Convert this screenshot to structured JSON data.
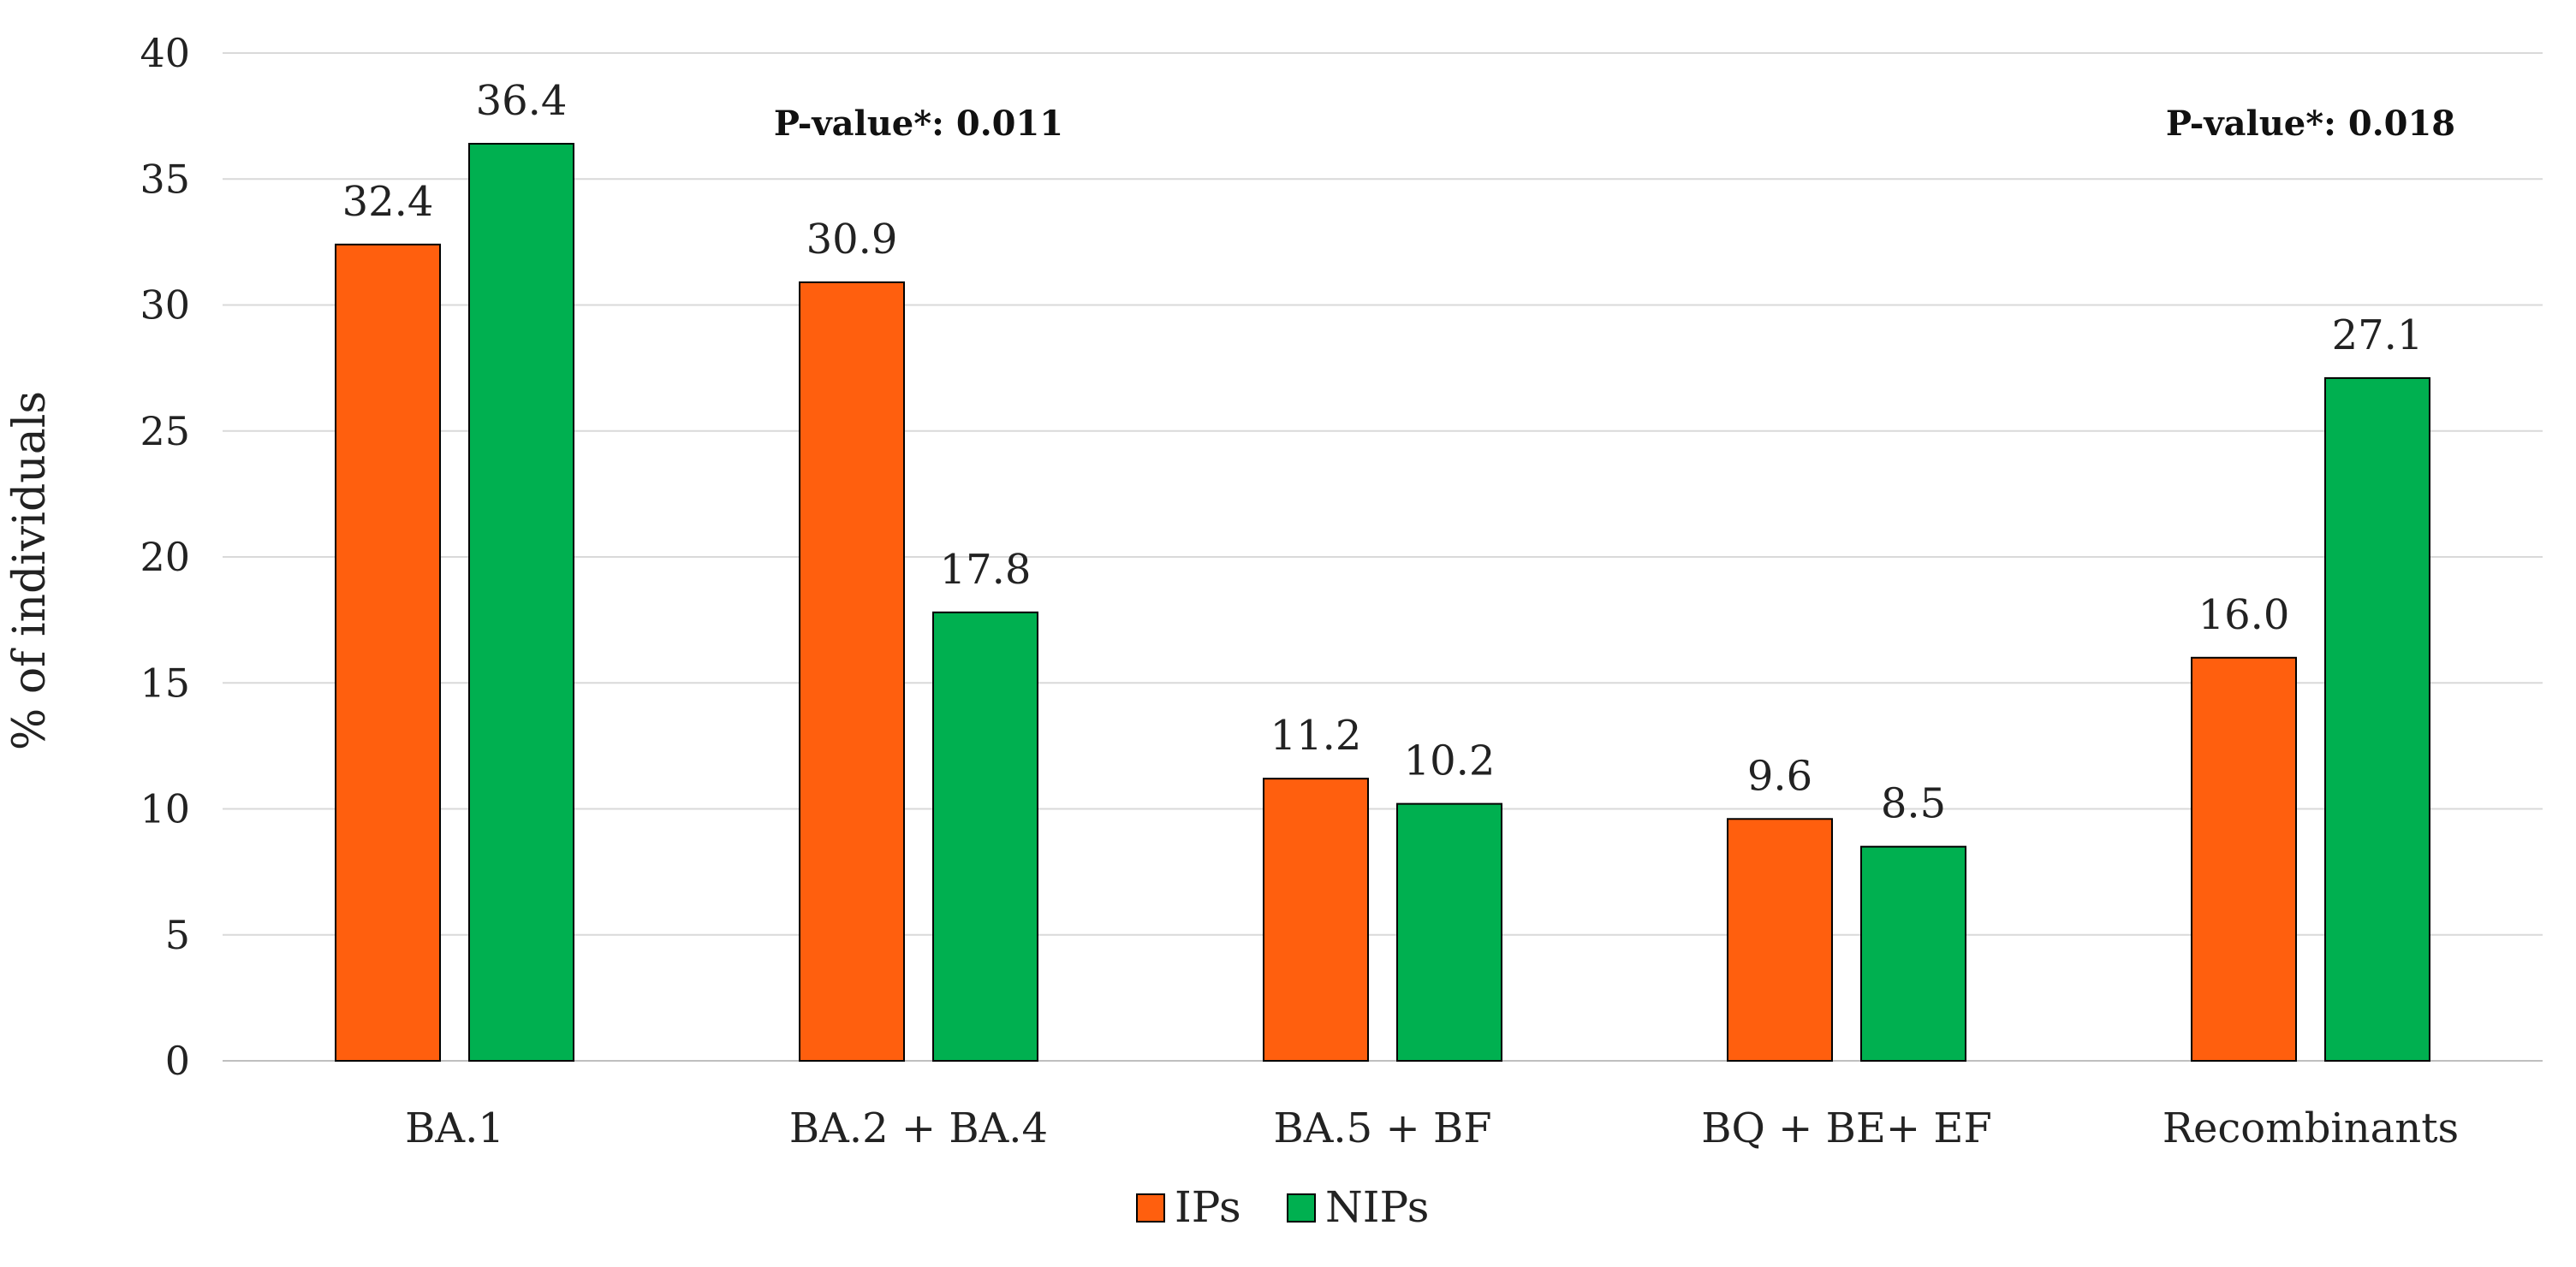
{
  "chart_data": {
    "type": "bar",
    "title": "",
    "xlabel": "",
    "ylabel": "% of individuals",
    "ylim": [
      0,
      40
    ],
    "yticks": [
      0,
      5,
      10,
      15,
      20,
      25,
      30,
      35,
      40
    ],
    "grid": true,
    "legend_position": "bottom-center",
    "categories": [
      "BA.1",
      "BA.2 + BA.4",
      "BA.5 + BF",
      "BQ + BE+ EF",
      "Recombinants"
    ],
    "series": [
      {
        "name": "IPs",
        "color": "#FF5F0E",
        "values": [
          32.4,
          30.9,
          11.2,
          9.6,
          16.0
        ],
        "labels": [
          "32.4",
          "30.9",
          "11.2",
          "9.6",
          "16.0"
        ]
      },
      {
        "name": "NIPs",
        "color": "#00B050",
        "values": [
          36.4,
          17.8,
          10.2,
          8.5,
          27.1
        ],
        "labels": [
          "36.4",
          "17.8",
          "10.2",
          "8.5",
          "27.1"
        ]
      }
    ],
    "annotations": [
      {
        "text": "P-value*: 0.011",
        "category": "BA.2 + BA.4"
      },
      {
        "text": "P-value*: 0.018",
        "category": "Recombinants"
      }
    ]
  }
}
